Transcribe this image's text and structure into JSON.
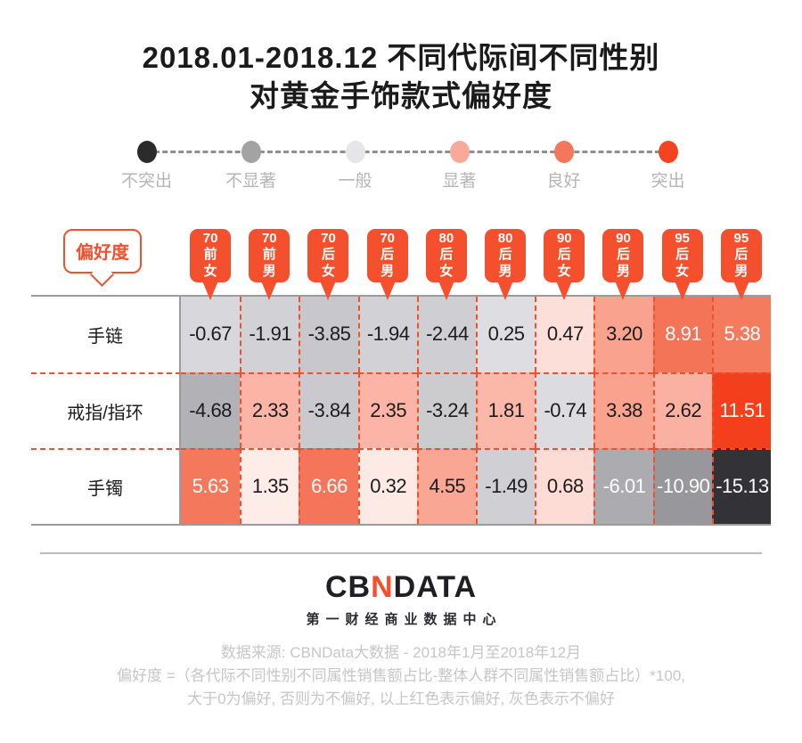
{
  "title": {
    "line1": "2018.01-2018.12 不同代际间不同性别",
    "line2": "对黄金手饰款式偏好度"
  },
  "legend": {
    "items": [
      {
        "label": "不突出",
        "color": "#2b2b2b"
      },
      {
        "label": "不显著",
        "color": "#a3a3a3"
      },
      {
        "label": "一般",
        "color": "#e6e6e8"
      },
      {
        "label": "显著",
        "color": "#f9a99a"
      },
      {
        "label": "良好",
        "color": "#f4775c"
      },
      {
        "label": "突出",
        "color": "#f4441f"
      }
    ]
  },
  "pref_label": "偏好度",
  "columns": [
    [
      "70",
      "前",
      "女"
    ],
    [
      "70",
      "前",
      "男"
    ],
    [
      "70",
      "后",
      "女"
    ],
    [
      "70",
      "后",
      "男"
    ],
    [
      "80",
      "后",
      "女"
    ],
    [
      "80",
      "后",
      "男"
    ],
    [
      "90",
      "后",
      "女"
    ],
    [
      "90",
      "后",
      "男"
    ],
    [
      "95",
      "后",
      "女"
    ],
    [
      "95",
      "后",
      "男"
    ]
  ],
  "rows": [
    {
      "label": "手链",
      "cells": [
        {
          "value": "-0.67",
          "bg": "#d8d8dc",
          "fg": "#1c1c1e"
        },
        {
          "value": "-1.91",
          "bg": "#d2d2d6",
          "fg": "#1c1c1e"
        },
        {
          "value": "-3.85",
          "bg": "#c8c8cc",
          "fg": "#1c1c1e"
        },
        {
          "value": "-1.94",
          "bg": "#d2d2d6",
          "fg": "#1c1c1e"
        },
        {
          "value": "-2.44",
          "bg": "#cfcfd3",
          "fg": "#1c1c1e"
        },
        {
          "value": "0.25",
          "bg": "#dedee2",
          "fg": "#1c1c1e"
        },
        {
          "value": "0.47",
          "bg": "#fcdfd8",
          "fg": "#1c1c1e"
        },
        {
          "value": "3.20",
          "bg": "#f9a38e",
          "fg": "#1c1c1e"
        },
        {
          "value": "8.91",
          "bg": "#f47458",
          "fg": "#ffffff"
        },
        {
          "value": "5.38",
          "bg": "#f57b5f",
          "fg": "#ffffff"
        }
      ]
    },
    {
      "label": "戒指/指环",
      "cells": [
        {
          "value": "-4.68",
          "bg": "#b2b2b6",
          "fg": "#1c1c1e"
        },
        {
          "value": "2.33",
          "bg": "#fbb4a5",
          "fg": "#1c1c1e"
        },
        {
          "value": "-3.84",
          "bg": "#cacace",
          "fg": "#1c1c1e"
        },
        {
          "value": "2.35",
          "bg": "#fbb4a5",
          "fg": "#1c1c1e"
        },
        {
          "value": "-3.24",
          "bg": "#cccccf",
          "fg": "#1c1c1e"
        },
        {
          "value": "1.81",
          "bg": "#fbb7a8",
          "fg": "#1c1c1e"
        },
        {
          "value": "-0.74",
          "bg": "#dcdce0",
          "fg": "#1c1c1e"
        },
        {
          "value": "3.38",
          "bg": "#f9a28d",
          "fg": "#1c1c1e"
        },
        {
          "value": "2.62",
          "bg": "#fbb1a1",
          "fg": "#1c1c1e"
        },
        {
          "value": "11.51",
          "bg": "#f43f1d",
          "fg": "#ffffff"
        }
      ]
    },
    {
      "label": "手镯",
      "cells": [
        {
          "value": "5.63",
          "bg": "#f4785c",
          "fg": "#ffffff"
        },
        {
          "value": "1.35",
          "bg": "#fdece7",
          "fg": "#1c1c1e"
        },
        {
          "value": "6.66",
          "bg": "#f47559",
          "fg": "#ffffff"
        },
        {
          "value": "0.32",
          "bg": "#fdeae5",
          "fg": "#1c1c1e"
        },
        {
          "value": "4.55",
          "bg": "#f9a794",
          "fg": "#1c1c1e"
        },
        {
          "value": "-1.49",
          "bg": "#d0d0d4",
          "fg": "#1c1c1e"
        },
        {
          "value": "0.68",
          "bg": "#fcdcd4",
          "fg": "#1c1c1e"
        },
        {
          "value": "-6.01",
          "bg": "#acacb0",
          "fg": "#ffffff"
        },
        {
          "value": "-10.90",
          "bg": "#98989c",
          "fg": "#ffffff"
        },
        {
          "value": "-15.13",
          "bg": "#333337",
          "fg": "#ffffff"
        }
      ]
    }
  ],
  "logo": {
    "cb": "CB",
    "n": "N",
    "data": "DATA",
    "subtitle": "第一财经商业数据中心"
  },
  "footer": {
    "line1": "数据来源: CBNData大数据 - 2018年1月至2018年12月",
    "line2": "偏好度 =（各代际不同性别不同属性销售额占比-整体人群不同属性销售额占比）*100,",
    "line3": "大于0为偏好, 否则为不偏好, 以上红色表示偏好, 灰色表示不偏好"
  },
  "colors": {
    "accent": "#f4502e",
    "grid_gray": "#9b9b9b",
    "dash_red": "#f0502d"
  },
  "chart_data": {
    "type": "heatmap",
    "title": "2018.01-2018.12 不同代际间不同性别对黄金手饰款式偏好度",
    "columns": [
      "70前女",
      "70前男",
      "70后女",
      "70后男",
      "80后女",
      "80后男",
      "90后女",
      "90后男",
      "95后女",
      "95后男"
    ],
    "rows": [
      "手链",
      "戒指/指环",
      "手镯"
    ],
    "series": [
      {
        "name": "手链",
        "values": [
          -0.67,
          -1.91,
          -3.85,
          -1.94,
          -2.44,
          0.25,
          0.47,
          3.2,
          8.91,
          5.38
        ]
      },
      {
        "name": "戒指/指环",
        "values": [
          -4.68,
          2.33,
          -3.84,
          2.35,
          -3.24,
          1.81,
          -0.74,
          3.38,
          2.62,
          11.51
        ]
      },
      {
        "name": "手镯",
        "values": [
          5.63,
          1.35,
          6.66,
          0.32,
          4.55,
          -1.49,
          0.68,
          -6.01,
          -10.9,
          -15.13
        ]
      }
    ],
    "legend": [
      "不突出",
      "不显著",
      "一般",
      "显著",
      "良好",
      "突出"
    ],
    "legend_position": "top",
    "value_note": "values colored from dark gray (strong non-preference) to red (strong preference)"
  }
}
